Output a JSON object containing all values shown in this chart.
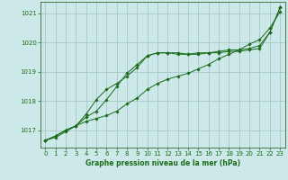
{
  "title": "Graphe pression niveau de la mer (hPa)",
  "bg_color": "#cce8e8",
  "grid_color": "#aacccc",
  "line_color": "#1a6b1a",
  "xlim": [
    -0.5,
    23.5
  ],
  "ylim": [
    1016.4,
    1021.4
  ],
  "yticks": [
    1017,
    1018,
    1019,
    1020,
    1021
  ],
  "xticks": [
    0,
    1,
    2,
    3,
    4,
    5,
    6,
    7,
    8,
    9,
    10,
    11,
    12,
    13,
    14,
    15,
    16,
    17,
    18,
    19,
    20,
    21,
    22,
    23
  ],
  "series": [
    [
      1016.65,
      1016.8,
      1017.0,
      1017.15,
      1017.55,
      1018.05,
      1018.4,
      1018.6,
      1018.85,
      1019.15,
      1019.55,
      1019.65,
      1019.65,
      1019.65,
      1019.6,
      1019.65,
      1019.65,
      1019.7,
      1019.75,
      1019.75,
      1019.8,
      1019.9,
      1020.35,
      1021.2
    ],
    [
      1016.65,
      1016.8,
      1017.0,
      1017.15,
      1017.3,
      1017.4,
      1017.5,
      1017.65,
      1017.9,
      1018.1,
      1018.4,
      1018.6,
      1018.75,
      1018.85,
      1018.95,
      1019.1,
      1019.25,
      1019.45,
      1019.6,
      1019.75,
      1019.95,
      1020.1,
      1020.5,
      1021.05
    ],
    [
      1016.65,
      1016.75,
      1016.95,
      1017.15,
      1017.45,
      1017.65,
      1018.05,
      1018.5,
      1018.95,
      1019.25,
      1019.55,
      1019.65,
      1019.65,
      1019.6,
      1019.6,
      1019.6,
      1019.65,
      1019.65,
      1019.7,
      1019.7,
      1019.75,
      1019.8,
      1020.35,
      1021.2
    ]
  ]
}
